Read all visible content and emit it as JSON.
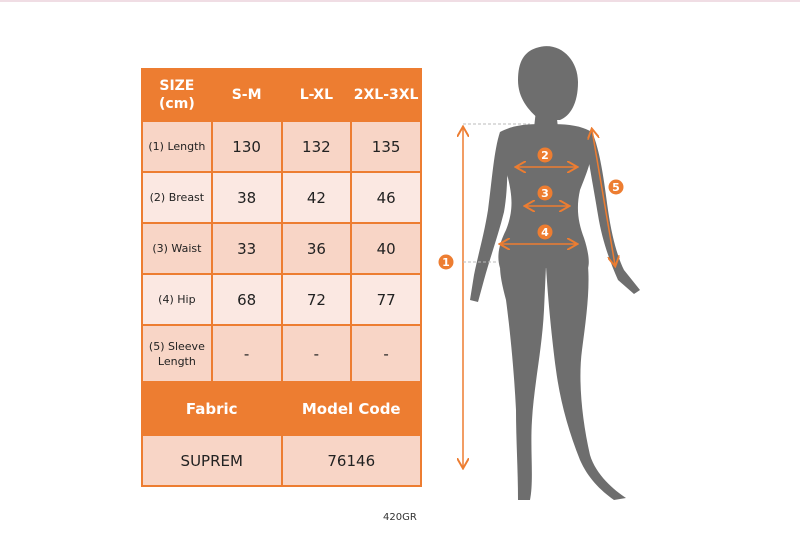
{
  "table": {
    "header": [
      "SIZE (cm)",
      "S-M",
      "L-XL",
      "2XL-3XL"
    ],
    "rows": [
      {
        "label": "(1) Length",
        "values": [
          "130",
          "132",
          "135"
        ]
      },
      {
        "label": "(2) Breast",
        "values": [
          "38",
          "42",
          "46"
        ]
      },
      {
        "label": "(3) Waist",
        "values": [
          "33",
          "36",
          "40"
        ]
      },
      {
        "label": "(4) Hip",
        "values": [
          "68",
          "72",
          "77"
        ]
      },
      {
        "label": "(5) Sleeve Length",
        "values": [
          "-",
          "-",
          "-"
        ]
      }
    ],
    "fabric_header": "Fabric",
    "model_code_header": "Model Code",
    "fabric": "SUPREM",
    "model_code": "76146"
  },
  "product_code": "420GR",
  "diagram": {
    "markers": [
      "1",
      "2",
      "3",
      "4",
      "5"
    ],
    "accent_color": "#ed7d31",
    "silhouette_color": "#6e6e6e"
  }
}
